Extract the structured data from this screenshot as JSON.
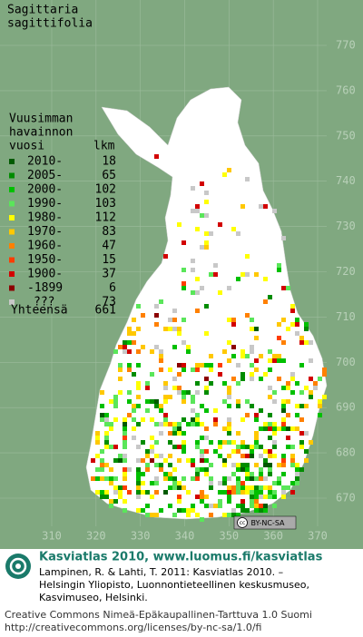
{
  "title": [
    "Sagittaria",
    "sagittifolia"
  ],
  "legend": {
    "heading": [
      "Vuusimman",
      "havainnon",
      "vuosi"
    ],
    "count_heading": "lkm",
    "rows": [
      {
        "label": "2010-",
        "count": 18,
        "color": "#005a00"
      },
      {
        "label": "2005-",
        "count": 65,
        "color": "#008c00"
      },
      {
        "label": "2000-",
        "count": 102,
        "color": "#00c000"
      },
      {
        "label": "1990-",
        "count": 103,
        "color": "#5ae65a"
      },
      {
        "label": "1980-",
        "count": 112,
        "color": "#ffff00"
      },
      {
        "label": "1970-",
        "count": 83,
        "color": "#ffc800"
      },
      {
        "label": "1960-",
        "count": 47,
        "color": "#ff8000"
      },
      {
        "label": "1950-",
        "count": 15,
        "color": "#ff3c00"
      },
      {
        "label": "1900-",
        "count": 37,
        "color": "#d20000"
      },
      {
        "label": "-1899",
        "count": 6,
        "color": "#8c0000"
      },
      {
        "label": "???",
        "count": 73,
        "color": "#c8c8c8"
      }
    ],
    "total_label": "Yhteensä",
    "total": 661
  },
  "y_grid": [
    770,
    760,
    750,
    740,
    730,
    720,
    710,
    700,
    690,
    680,
    670
  ],
  "x_grid": [
    310,
    320,
    330,
    340,
    350,
    360,
    370
  ],
  "license_badge": "BY-NC-SA",
  "footer": {
    "title": "Kasviatlas 2010, www.luomus.fi/kasviatlas",
    "citation": [
      "Lampinen, R. & Lahti, T. 2011: Kasviatlas 2010. –",
      "Helsingin Yliopisto, Luonnontieteellinen keskusmuseo,",
      "Kasvimuseo, Helsinki."
    ],
    "license": [
      "Creative Commons Nimeä-Epäkaupallinen-Tarttuva 1.0 Suomi",
      "http://creativecommons.org/licenses/by-nc-sa/1.0/fi"
    ]
  }
}
